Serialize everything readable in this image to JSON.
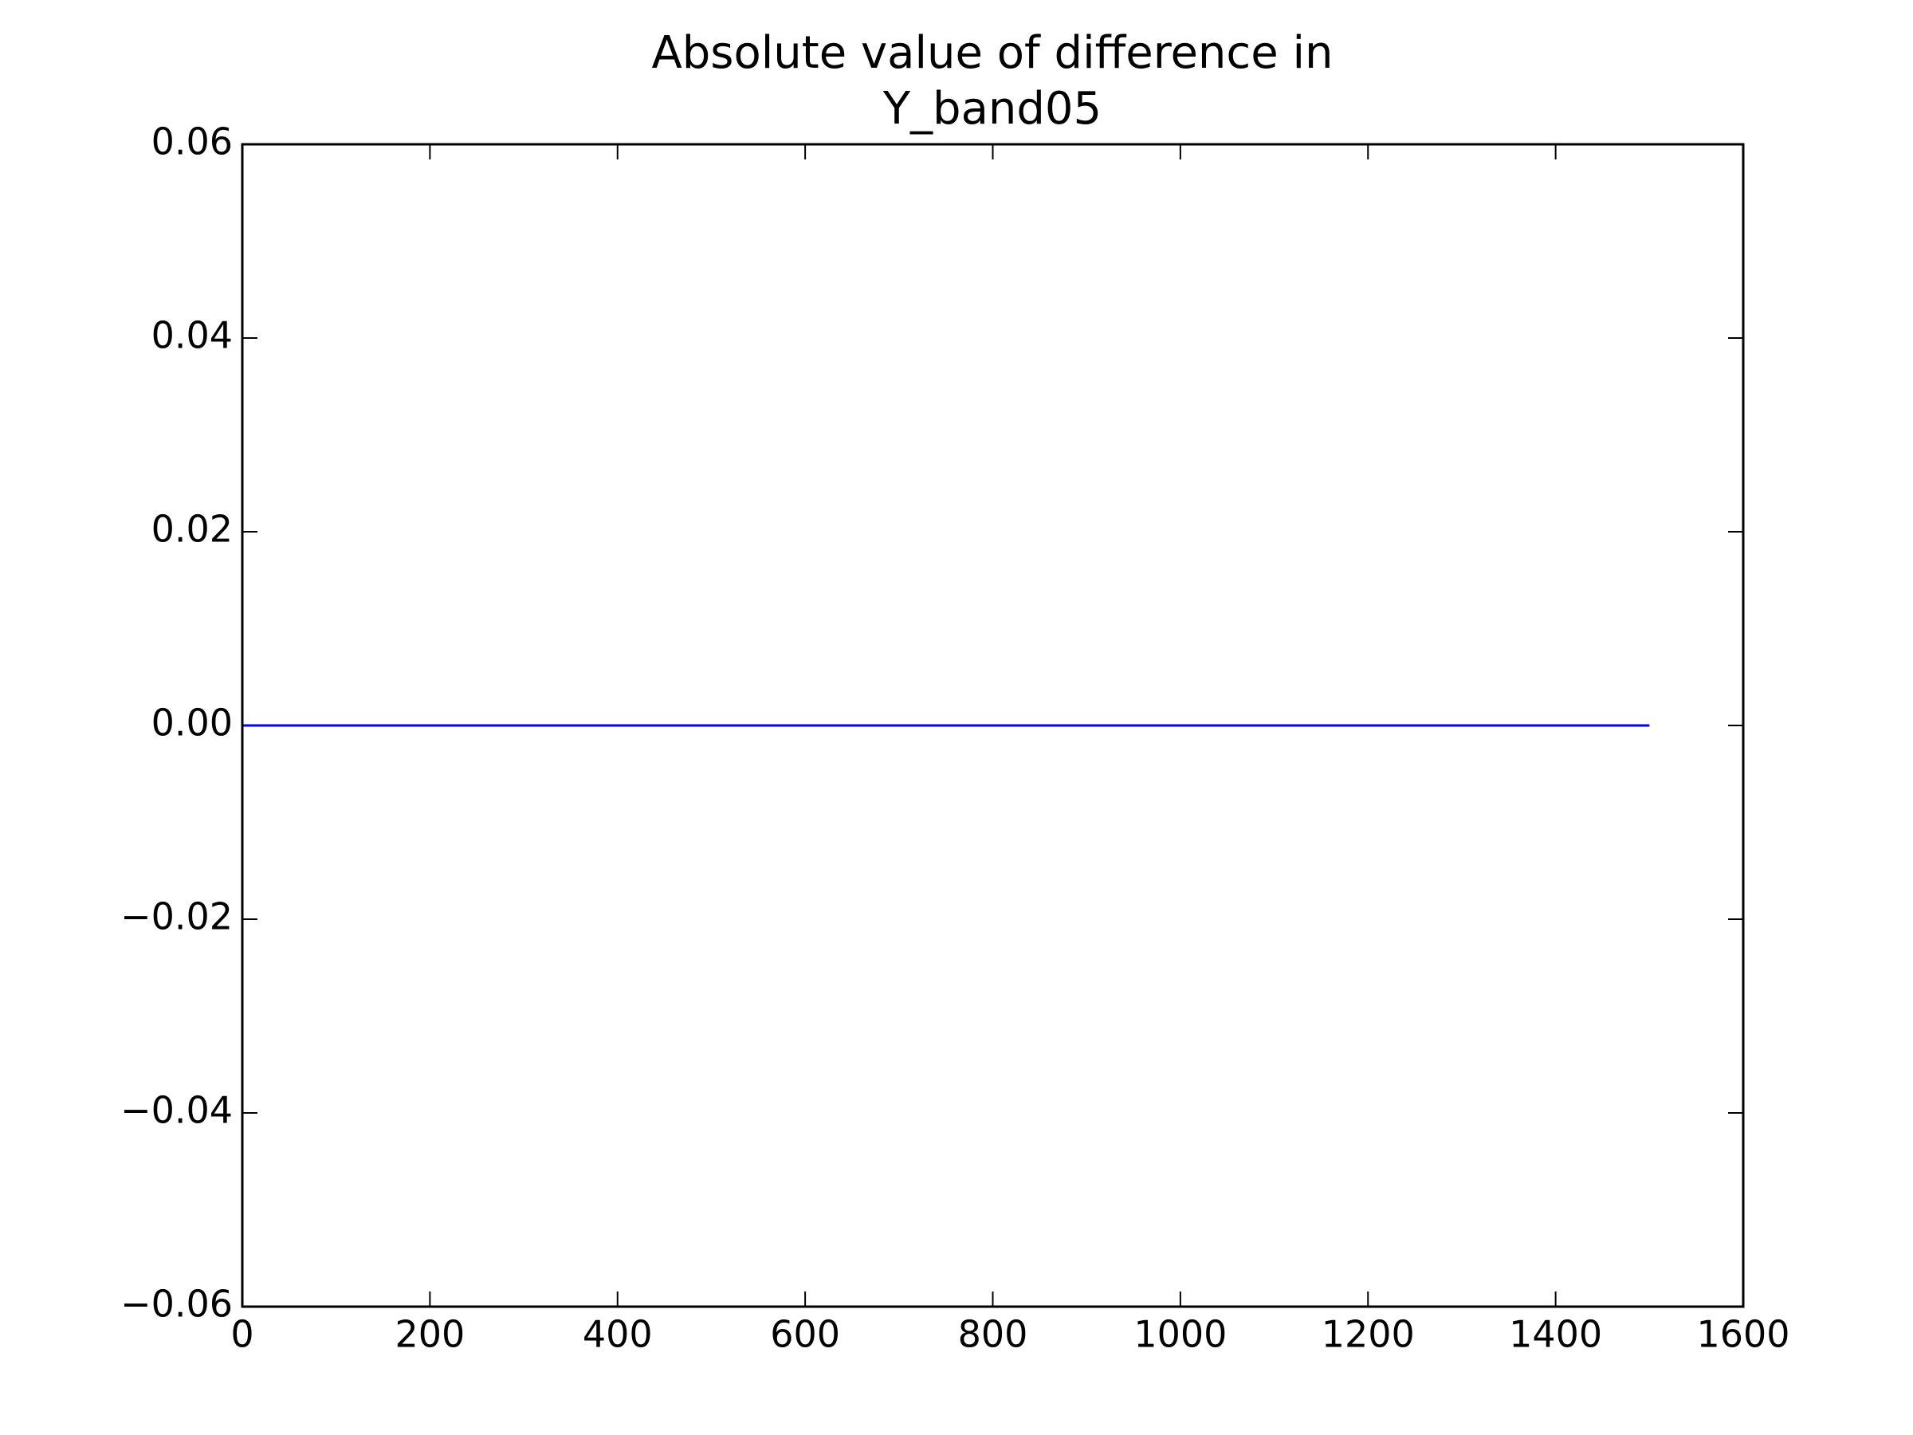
{
  "chart_data": {
    "type": "line",
    "title": [
      "Absolute value of difference in",
      "Y_band05"
    ],
    "x": [
      0,
      1500
    ],
    "series": [
      {
        "color": "#0000ff",
        "values": [
          0,
          0
        ]
      }
    ],
    "xlim": [
      0,
      1600
    ],
    "xticks": [
      0,
      200,
      400,
      600,
      800,
      1000,
      1200,
      1400,
      1600
    ],
    "ylim": [
      -0.06,
      0.06
    ],
    "yticks": [
      {
        "value": -0.06,
        "label": "−0.06"
      },
      {
        "value": -0.04,
        "label": "−0.04"
      },
      {
        "value": -0.02,
        "label": "−0.02"
      },
      {
        "value": 0,
        "label": "0.00"
      },
      0.02,
      0.04,
      0.06
    ],
    "grid": false
  }
}
